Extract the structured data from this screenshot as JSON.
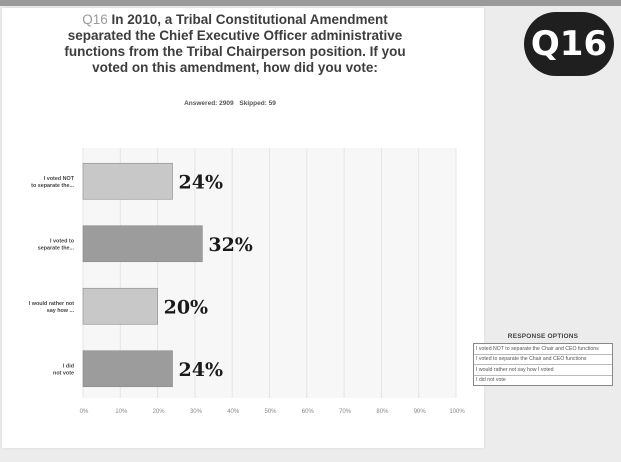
{
  "badge": "Q16",
  "title": {
    "qnum": "Q16",
    "text": "In 2010, a Tribal Constitutional Amendment separated the Chief Executive Officer administrative functions from the Tribal Chairperson position. If you voted on this amendment, how did you vote:"
  },
  "answered": {
    "answered_label": "Answered: 2909",
    "skipped_label": "Skipped: 59"
  },
  "legend": {
    "title": "RESPONSE OPTIONS",
    "items": [
      "I voted NOT to separate the Chair and CEO functions",
      "I voted to separate the Chair and CEO functions",
      "I would rather not say how I voted",
      "I did not vote"
    ]
  },
  "colors": {
    "bar_light": "#c8c8c8",
    "bar_dark": "#9c9c9c",
    "grid": "#e4e4e4",
    "plot_bg": "#f7f7f7"
  },
  "chart_data": {
    "type": "bar",
    "orientation": "horizontal",
    "categories": [
      "I voted NOT to separate the...",
      "I voted to separate the...",
      "I would rather not say how ...",
      "I did not vote"
    ],
    "values": [
      24,
      32,
      20,
      24
    ],
    "data_labels": [
      "24%",
      "32%",
      "20%",
      "24%"
    ],
    "xlim": [
      0,
      100
    ],
    "x_ticks": [
      "0%",
      "10%",
      "20%",
      "30%",
      "40%",
      "50%",
      "60%",
      "70%",
      "80%",
      "90%",
      "100%"
    ],
    "grid": true
  }
}
